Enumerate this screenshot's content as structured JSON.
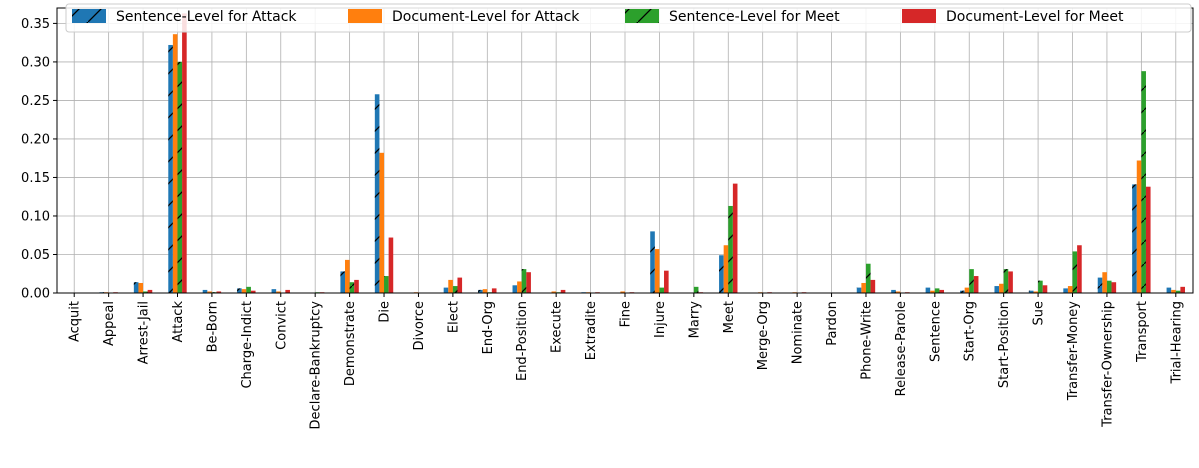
{
  "chart_data": {
    "type": "bar",
    "title": "",
    "xlabel": "",
    "ylabel": "",
    "ylim": [
      0,
      0.37
    ],
    "yticks": [
      "0.00",
      "0.05",
      "0.10",
      "0.15",
      "0.20",
      "0.25",
      "0.30",
      "0.35"
    ],
    "grid": true,
    "legend_position": "top",
    "categories": [
      "Acquit",
      "Appeal",
      "Arrest-Jail",
      "Attack",
      "Be-Born",
      "Charge-Indict",
      "Convict",
      "Declare-Bankruptcy",
      "Demonstrate",
      "Die",
      "Divorce",
      "Elect",
      "End-Org",
      "End-Position",
      "Execute",
      "Extradite",
      "Fine",
      "Injure",
      "Marry",
      "Meet",
      "Merge-Org",
      "Nominate",
      "Pardon",
      "Phone-Write",
      "Release-Parole",
      "Sentence",
      "Start-Org",
      "Start-Position",
      "Sue",
      "Transfer-Money",
      "Transfer-Ownership",
      "Transport",
      "Trial-Hearing"
    ],
    "series": [
      {
        "name": "Sentence-Level for Attack",
        "color": "#1f77b4",
        "hatch": true,
        "values": [
          0.0,
          0.001,
          0.014,
          0.322,
          0.004,
          0.006,
          0.005,
          0.0,
          0.028,
          0.258,
          0.0,
          0.007,
          0.004,
          0.01,
          0.0,
          0.001,
          0.0,
          0.08,
          0.0,
          0.049,
          0.0,
          0.0,
          0.0,
          0.007,
          0.004,
          0.007,
          0.003,
          0.009,
          0.003,
          0.006,
          0.02,
          0.141,
          0.007
        ]
      },
      {
        "name": "Document-Level for Attack",
        "color": "#ff7f0e",
        "hatch": false,
        "values": [
          0.0,
          0.001,
          0.013,
          0.336,
          0.002,
          0.005,
          0.002,
          0.0,
          0.043,
          0.182,
          0.001,
          0.017,
          0.005,
          0.015,
          0.002,
          0.001,
          0.002,
          0.057,
          0.0,
          0.062,
          0.001,
          0.001,
          0.0,
          0.013,
          0.002,
          0.003,
          0.007,
          0.012,
          0.002,
          0.009,
          0.027,
          0.172,
          0.004
        ]
      },
      {
        "name": "Sentence-Level for Meet",
        "color": "#2ca02c",
        "hatch": true,
        "values": [
          0.0,
          0.0,
          0.002,
          0.3,
          0.001,
          0.008,
          0.0,
          0.001,
          0.014,
          0.022,
          0.0,
          0.009,
          0.001,
          0.031,
          0.001,
          0.0,
          0.0,
          0.007,
          0.008,
          0.113,
          0.0,
          0.0,
          0.0,
          0.038,
          0.0,
          0.006,
          0.031,
          0.031,
          0.016,
          0.054,
          0.016,
          0.288,
          0.003
        ]
      },
      {
        "name": "Document-Level for Meet",
        "color": "#d62728",
        "hatch": false,
        "values": [
          0.0,
          0.001,
          0.004,
          0.363,
          0.002,
          0.003,
          0.004,
          0.001,
          0.017,
          0.072,
          0.0,
          0.02,
          0.006,
          0.027,
          0.004,
          0.001,
          0.001,
          0.029,
          0.001,
          0.142,
          0.001,
          0.001,
          0.0,
          0.017,
          0.001,
          0.004,
          0.022,
          0.028,
          0.01,
          0.062,
          0.014,
          0.138,
          0.008
        ]
      }
    ]
  }
}
